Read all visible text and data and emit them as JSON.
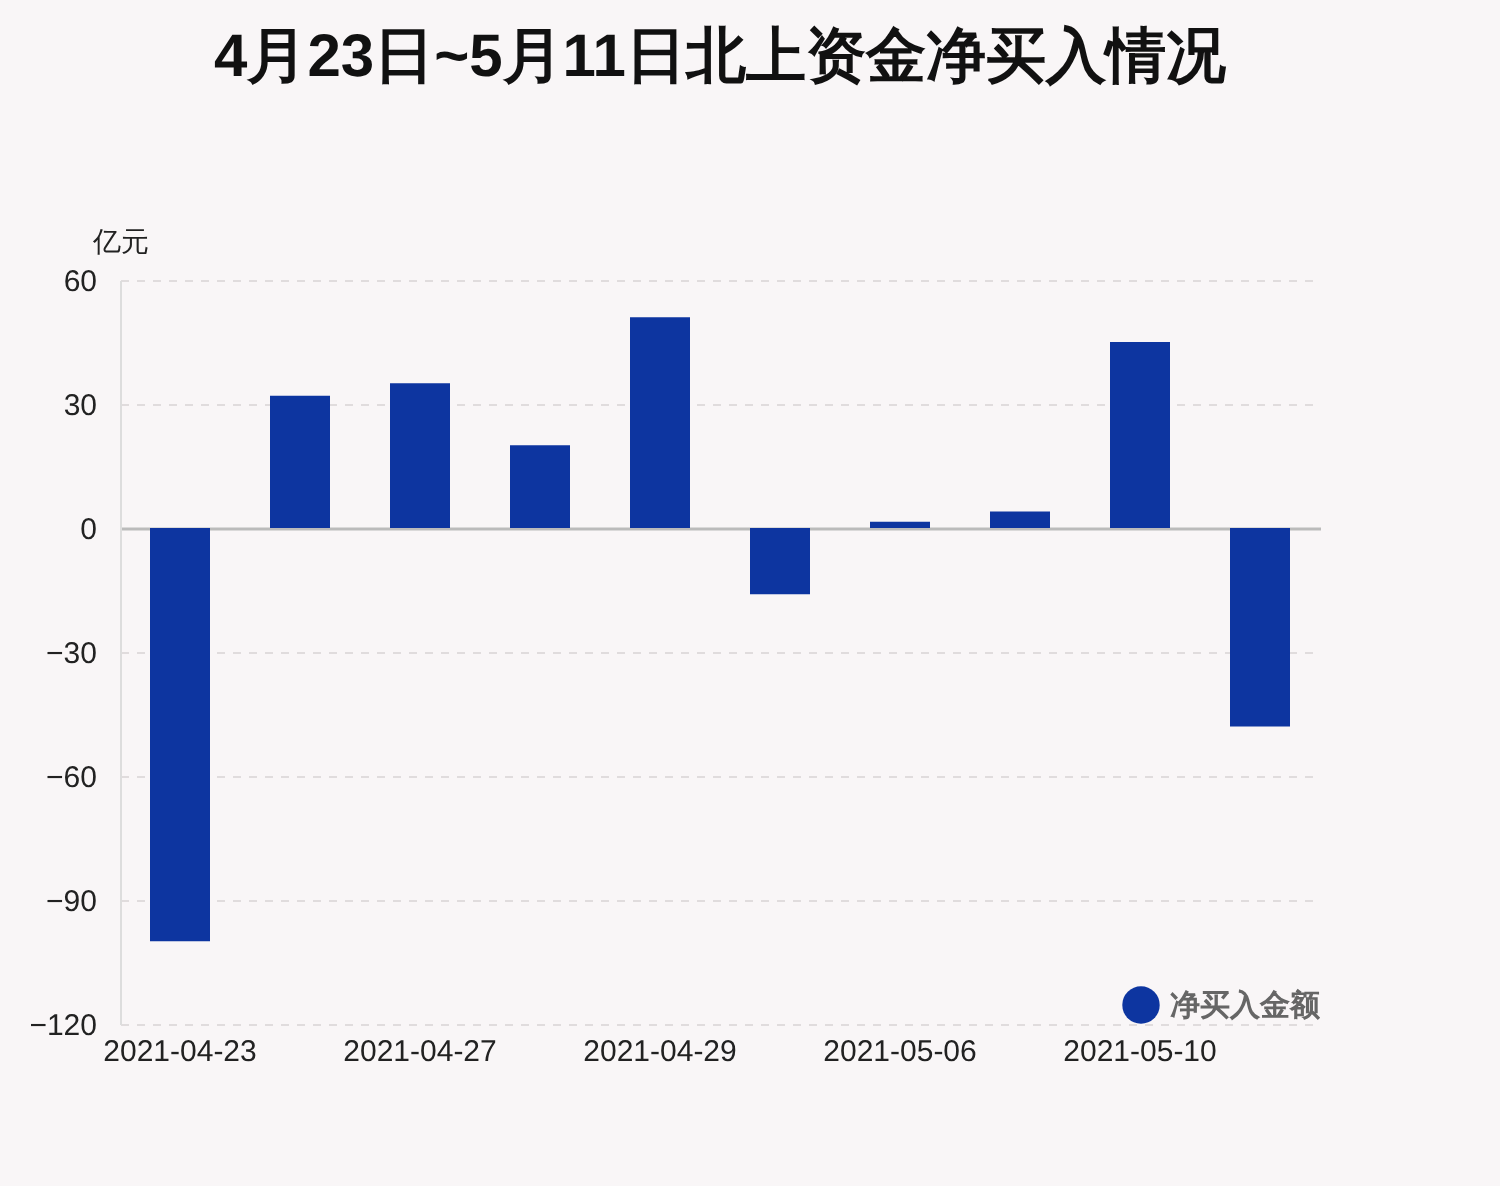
{
  "chart_data": {
    "type": "bar",
    "title": "4月23日~5月11日北上资金净买入情况",
    "ylabel": "亿元",
    "categories": [
      "2021-04-23",
      null,
      "2021-04-27",
      null,
      "2021-04-29",
      null,
      "2021-05-06",
      null,
      "2021-05-10",
      null
    ],
    "series": [
      {
        "name": "净买入金额",
        "color": "#0d35a0",
        "values": [
          -100,
          32,
          35,
          20,
          51,
          -16,
          1.5,
          4,
          45,
          -48
        ]
      }
    ],
    "ylim": [
      -120,
      60
    ],
    "yticks": [
      -120,
      -90,
      -60,
      -30,
      0,
      30,
      60
    ],
    "grid": "y",
    "legend": "bottom right"
  }
}
